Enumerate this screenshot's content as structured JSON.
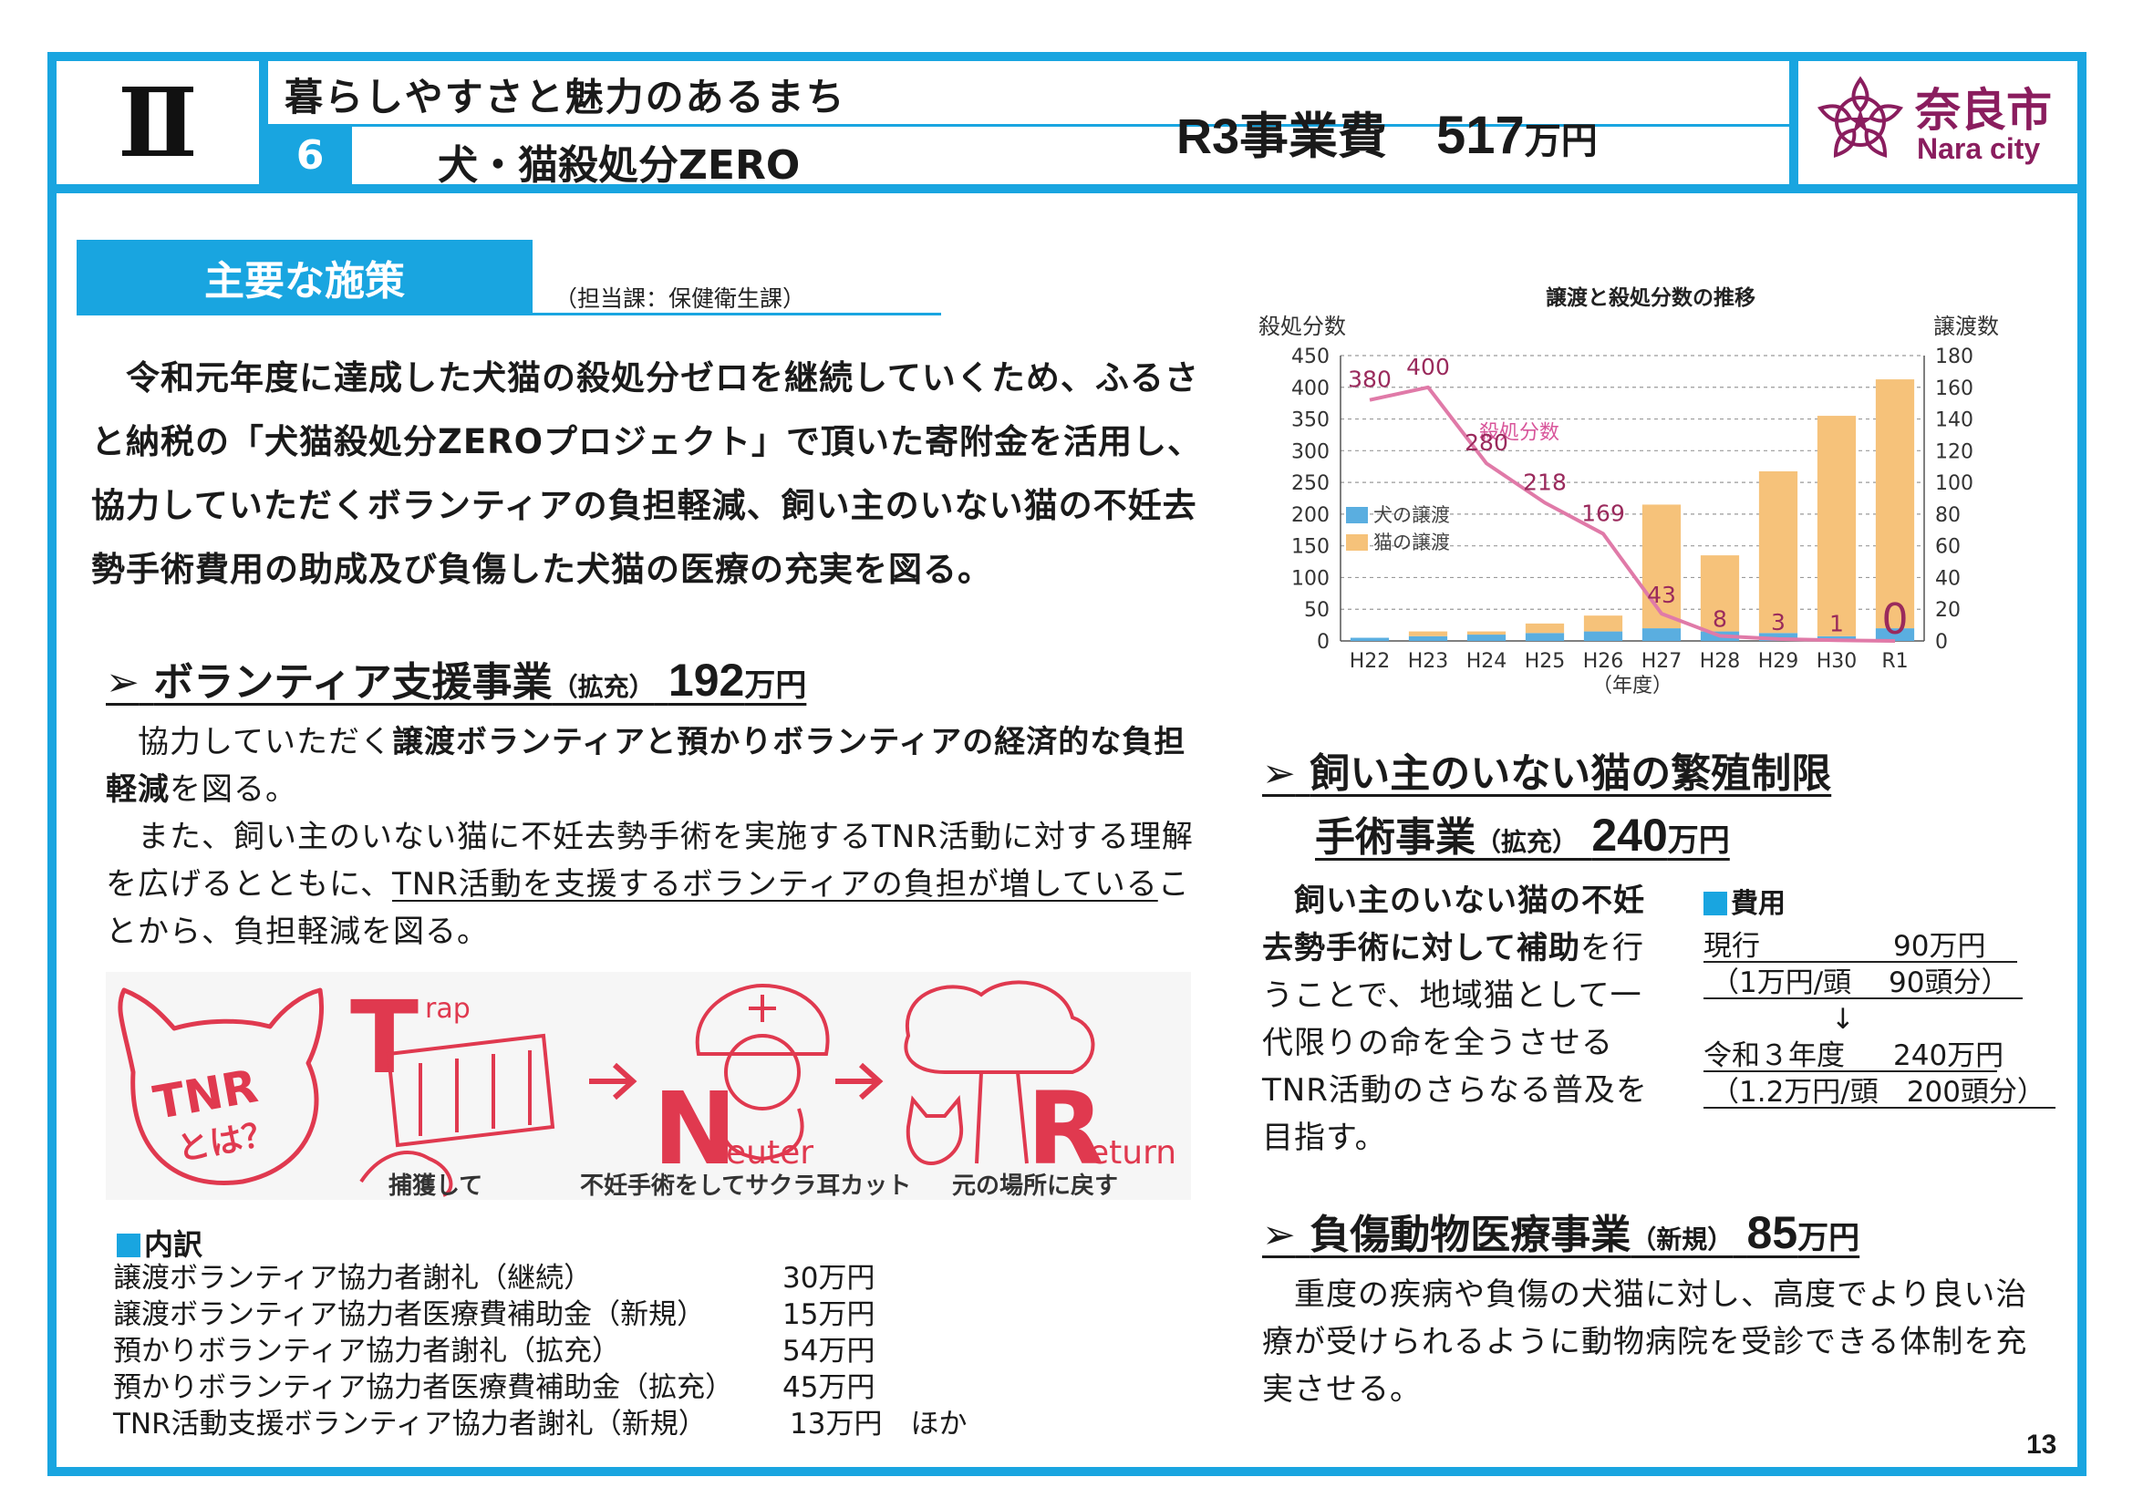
{
  "header": {
    "chapter": "Ⅱ",
    "theme": "暮らしやすさと魅力のあるまち",
    "number": "6",
    "title": "犬・猫殺処分ZERO",
    "budget_label": "R3事業費",
    "budget_value": "517",
    "budget_unit": "万円",
    "logo_ja": "奈良市",
    "logo_en": "Nara city",
    "colors": {
      "accent": "#19a5e0",
      "logo": "#8a1d5e"
    }
  },
  "policy": {
    "label": "主要な施策",
    "dept": "（担当課：保健衛生課）",
    "lead": "　令和元年度に達成した犬猫の殺処分ゼロを継続していくため、ふるさと納税の「犬猫殺処分ZEROプロジェクト」で頂いた寄附金を活用し、協力していただくボランティアの負担軽減、飼い主のいない猫の不妊去勢手術費用の助成及び負傷した犬猫の医療の充実を図る。"
  },
  "volunteer": {
    "arrow": "➢",
    "title": "ボランティア支援事業",
    "tag": "（拡充）",
    "amount": "192",
    "unit": "万円",
    "p1_pre": "　協力していただく",
    "p1_bold": "譲渡ボランティアと預かりボランティアの経済的な負担軽減",
    "p1_post": "を図る。",
    "p2_pre": "　また、飼い主のいない猫に不妊去勢手術を実施するTNR活動に対する理解を広げるとともに、",
    "p2_ul": "TNR活動を支援するボランティアの負担が増している",
    "p2_post": "ことから、負担軽減を図る。"
  },
  "tnr": {
    "badge_line1": "TNR",
    "badge_line2": "とは？",
    "t_letter": "T",
    "t_rest": "rap",
    "n_letter": "N",
    "n_rest": "euter",
    "r_letter": "R",
    "r_rest": "eturn",
    "cap1": "捕獲して",
    "cap2": "不妊手術をしてサクラ耳カット",
    "cap3": "元の場所に戻す"
  },
  "breakdown": {
    "title": "内訳",
    "items": [
      {
        "label": "譲渡ボランティア協力者謝礼（継続）",
        "amount": "30万円"
      },
      {
        "label": "譲渡ボランティア協力者医療費補助金（新規）",
        "amount": "15万円"
      },
      {
        "label": "預かりボランティア協力者謝礼（拡充）",
        "amount": "54万円"
      },
      {
        "label": "預かりボランティア協力者医療費補助金（拡充）",
        "amount": "45万円"
      },
      {
        "label": "TNR活動支援ボランティア協力者謝礼（新規）",
        "amount": "13万円　ほか"
      }
    ]
  },
  "chart_data": {
    "type": "bar",
    "title": "譲渡と殺処分数の推移",
    "ylabel_left": "殺処分数",
    "ylabel_right": "譲渡数",
    "xlabel": "（年度）",
    "categories": [
      "H22",
      "H23",
      "H24",
      "H25",
      "H26",
      "H27",
      "H28",
      "H29",
      "H30",
      "R1"
    ],
    "ylim_left": [
      0,
      450
    ],
    "ylim_right": [
      0,
      180
    ],
    "yticks_left": [
      0,
      50,
      100,
      150,
      200,
      250,
      300,
      350,
      400,
      450
    ],
    "yticks_right": [
      0,
      20,
      40,
      60,
      80,
      100,
      120,
      140,
      160,
      180
    ],
    "series": [
      {
        "name": "犬の譲渡",
        "axis": "right",
        "stacked": true,
        "color": "#5aaee0",
        "values": [
          2,
          3,
          4,
          5,
          6,
          8,
          6,
          5,
          3,
          8
        ]
      },
      {
        "name": "猫の譲渡",
        "axis": "right",
        "stacked": true,
        "color": "#f6c27a",
        "values": [
          0,
          3,
          2,
          6,
          10,
          78,
          48,
          102,
          139,
          157
        ]
      },
      {
        "name": "殺処分数",
        "axis": "left",
        "type": "line",
        "color": "#e07aa8",
        "values": [
          380,
          400,
          280,
          218,
          169,
          43,
          8,
          3,
          1,
          0
        ]
      }
    ],
    "data_labels": [
      "380",
      "400",
      "280",
      "218",
      "169",
      "43",
      "8",
      "3",
      "1",
      "0"
    ],
    "grid": true,
    "legend": "left-middle"
  },
  "surgery": {
    "arrow": "➢",
    "title1": "飼い主のいない猫の繁殖制限",
    "title2": "手術事業",
    "tag": "（拡充）",
    "amount": "240",
    "unit": "万円",
    "text_bold": "　飼い主のいない猫の不妊去勢手術に対して補助",
    "text_post": "を行うことで、地域猫として一代限りの命を全うさせるTNR活動のさらなる普及を目指す。",
    "cost_title": "費用",
    "current_label": "現行",
    "current_amount": "90万円",
    "current_detail": "（1万円/頭　 90頭分）",
    "down_arrow": "↓",
    "new_label": "令和３年度",
    "new_amount": "240万円",
    "new_detail": "（1.2万円/頭　200頭分）"
  },
  "medical": {
    "arrow": "➢",
    "title": "負傷動物医療事業",
    "tag": "（新規）",
    "amount": "85",
    "unit": "万円",
    "text": "　重度の疾病や負傷の犬猫に対し、高度でより良い治療が受けられるように動物病院を受診できる体制を充実させる。"
  },
  "page_number": "13"
}
